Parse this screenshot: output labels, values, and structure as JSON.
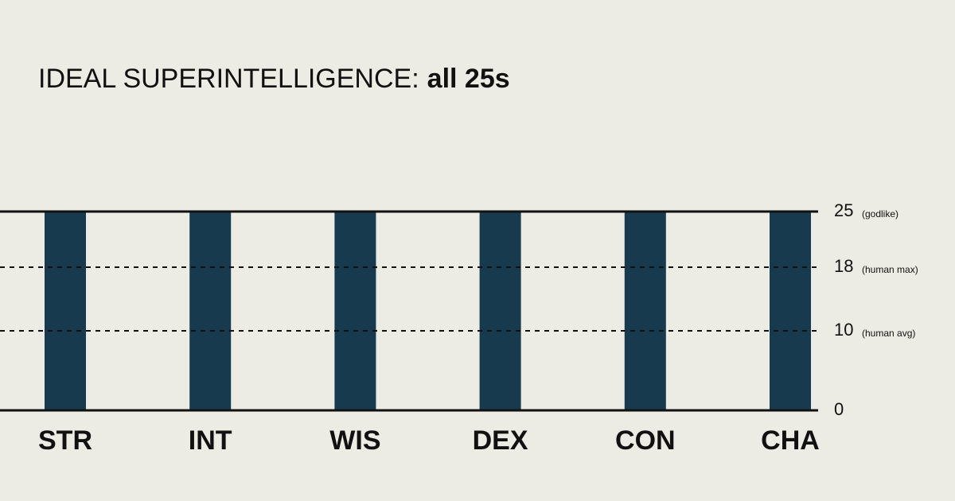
{
  "chart_data": {
    "type": "bar",
    "title": "IDEAL SUPERINTELLIGENCE:",
    "title_highlight": "all 25s",
    "categories": [
      "STR",
      "INT",
      "WIS",
      "DEX",
      "CON",
      "CHA"
    ],
    "values": [
      25,
      25,
      25,
      25,
      25,
      25
    ],
    "color": "#173a4f",
    "ylim": [
      0,
      25
    ],
    "yticks": [
      0,
      10,
      18,
      25
    ],
    "tick_notes": [
      {
        "value": 10,
        "text": "(human avg)"
      },
      {
        "value": 18,
        "text": "(human max)"
      },
      {
        "value": 25,
        "text": "(godlike)"
      }
    ],
    "grid": true
  }
}
